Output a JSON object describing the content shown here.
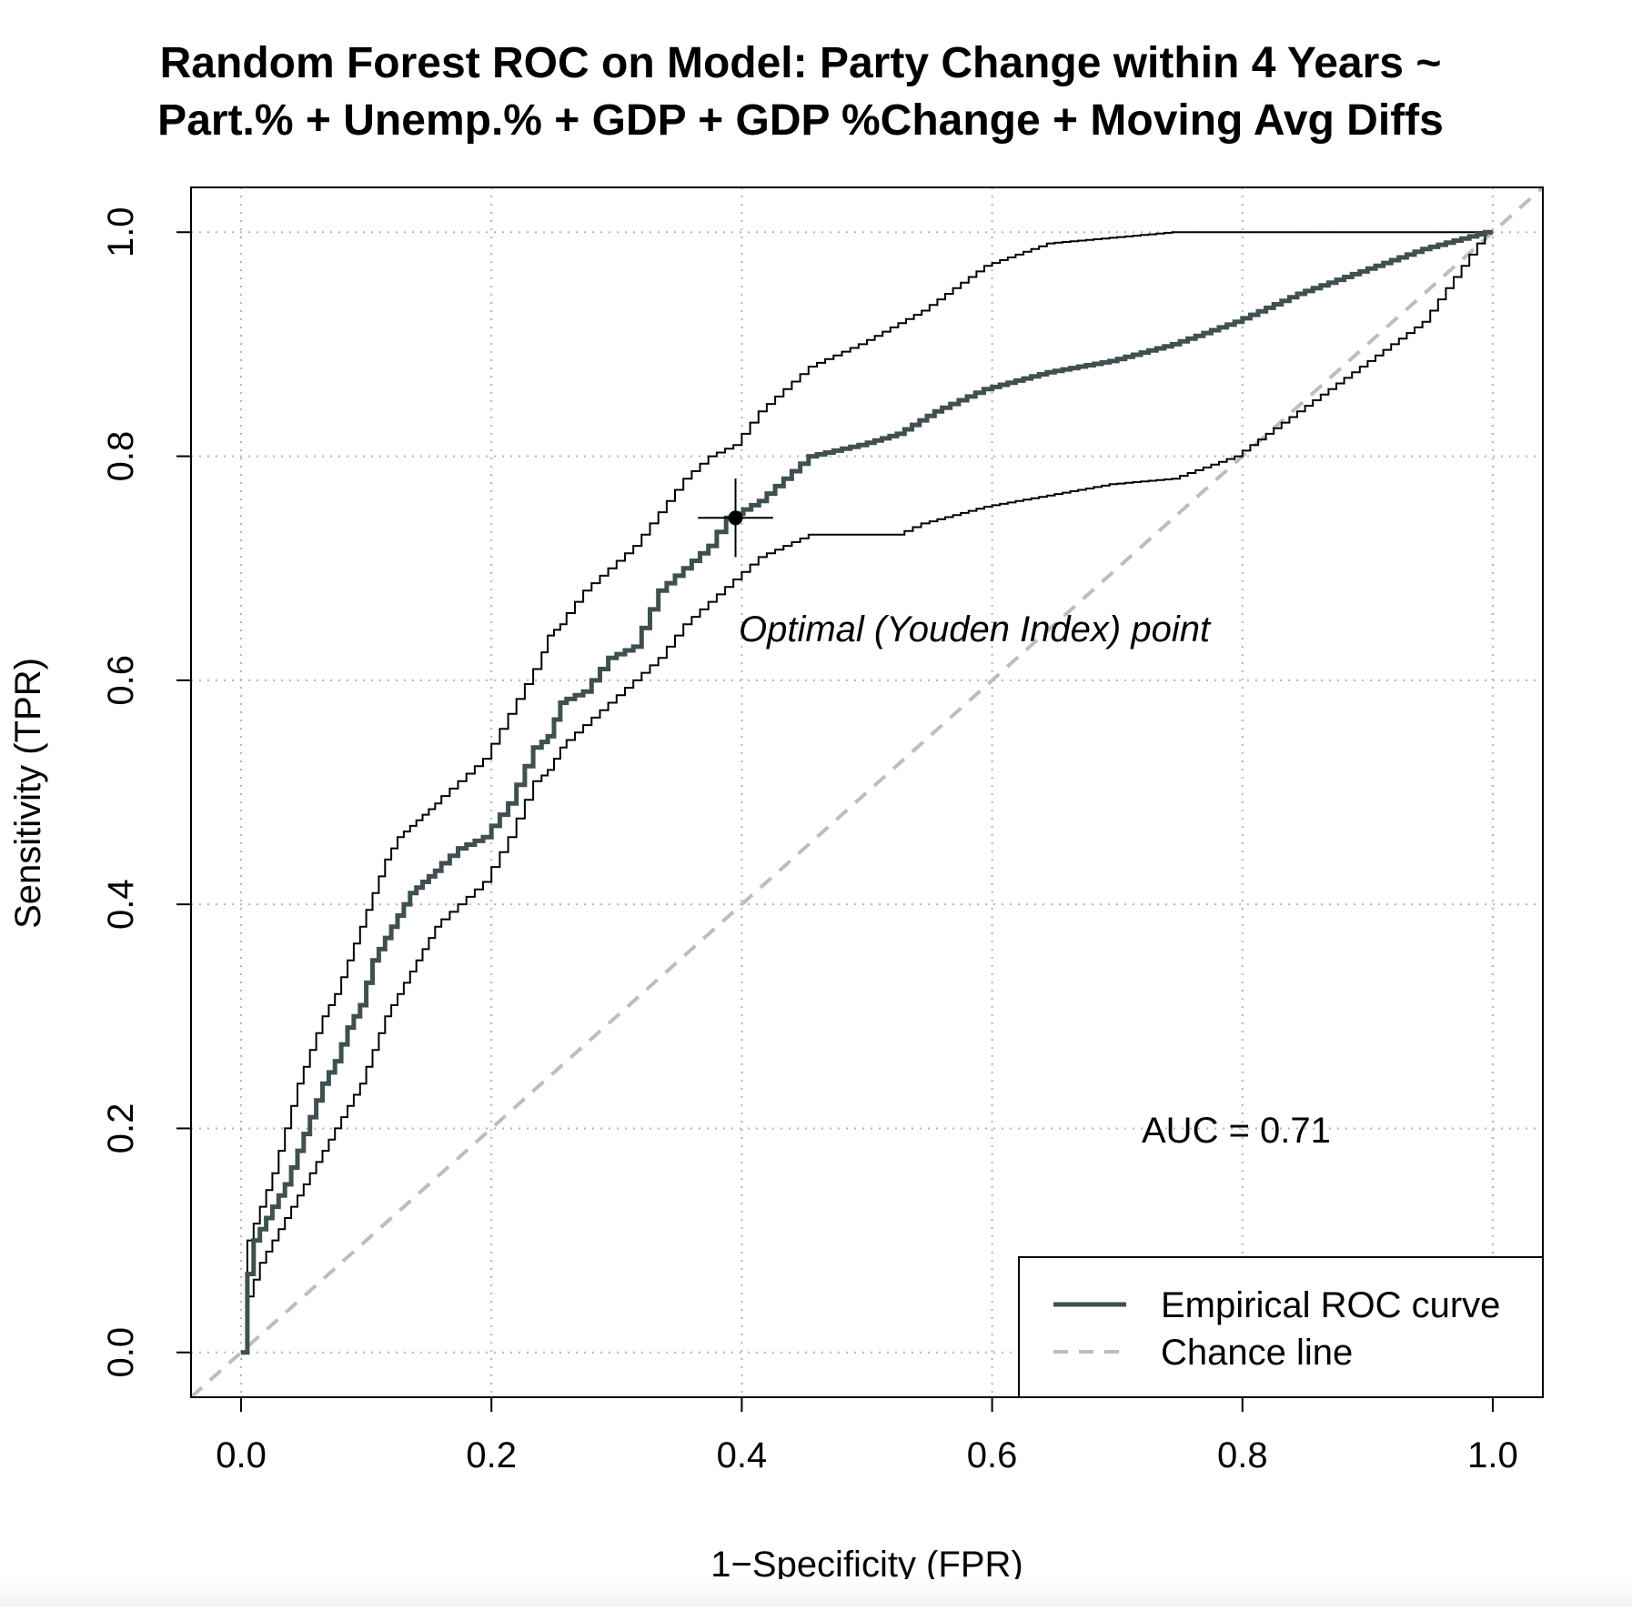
{
  "chart_data": {
    "type": "line",
    "title_line1": "Random Forest ROC on Model: Party Change within 4 Years ~",
    "title_line2": "Part.% + Unemp.% + GDP + GDP %Change + Moving Avg Diffs",
    "xlabel": "1−Specificity (FPR)",
    "ylabel": "Sensitivity (TPR)",
    "xlim": [
      -0.04,
      1.04
    ],
    "ylim": [
      -0.04,
      1.04
    ],
    "x_ticks": [
      "0.0",
      "0.2",
      "0.4",
      "0.6",
      "0.8",
      "1.0"
    ],
    "y_ticks": [
      "0.0",
      "0.2",
      "0.4",
      "0.6",
      "0.8",
      "1.0"
    ],
    "grid": true,
    "legend_position": "bottom-right",
    "series": [
      {
        "name": "Empirical ROC curve",
        "color": "#3e5050",
        "style": "solid",
        "x": [
          0.0,
          0.005,
          0.01,
          0.015,
          0.02,
          0.03,
          0.04,
          0.05,
          0.06,
          0.07,
          0.08,
          0.09,
          0.1,
          0.11,
          0.12,
          0.13,
          0.14,
          0.15,
          0.16,
          0.18,
          0.2,
          0.22,
          0.24,
          0.25,
          0.26,
          0.28,
          0.3,
          0.32,
          0.34,
          0.36,
          0.38,
          0.395,
          0.42,
          0.44,
          0.46,
          0.5,
          0.53,
          0.56,
          0.6,
          0.65,
          0.7,
          0.75,
          0.8,
          0.85,
          0.9,
          0.95,
          1.0
        ],
        "y": [
          0.0,
          0.0,
          0.07,
          0.1,
          0.11,
          0.13,
          0.15,
          0.18,
          0.21,
          0.24,
          0.26,
          0.29,
          0.31,
          0.35,
          0.37,
          0.39,
          0.41,
          0.42,
          0.43,
          0.45,
          0.46,
          0.49,
          0.54,
          0.55,
          0.58,
          0.59,
          0.62,
          0.63,
          0.68,
          0.7,
          0.72,
          0.745,
          0.76,
          0.78,
          0.8,
          0.81,
          0.82,
          0.84,
          0.86,
          0.875,
          0.885,
          0.9,
          0.92,
          0.945,
          0.965,
          0.985,
          1.0
        ]
      },
      {
        "name": "Chance line",
        "color": "#bdbdbd",
        "style": "dashed",
        "x": [
          -0.04,
          1.04
        ],
        "y": [
          -0.04,
          1.04
        ]
      },
      {
        "name": "Upper confidence bound",
        "color": "#000000",
        "style": "thin",
        "x": [
          0.0,
          0.005,
          0.01,
          0.02,
          0.03,
          0.04,
          0.05,
          0.06,
          0.07,
          0.08,
          0.09,
          0.1,
          0.11,
          0.12,
          0.13,
          0.14,
          0.15,
          0.16,
          0.18,
          0.2,
          0.22,
          0.24,
          0.25,
          0.26,
          0.28,
          0.3,
          0.32,
          0.34,
          0.36,
          0.38,
          0.4,
          0.42,
          0.44,
          0.46,
          0.5,
          0.55,
          0.6,
          0.65,
          0.7,
          0.75,
          0.8,
          1.0
        ],
        "y": [
          0.0,
          0.0,
          0.1,
          0.13,
          0.16,
          0.2,
          0.24,
          0.27,
          0.3,
          0.32,
          0.35,
          0.38,
          0.41,
          0.44,
          0.46,
          0.47,
          0.48,
          0.49,
          0.51,
          0.53,
          0.57,
          0.61,
          0.64,
          0.65,
          0.68,
          0.7,
          0.72,
          0.75,
          0.78,
          0.8,
          0.81,
          0.84,
          0.86,
          0.88,
          0.9,
          0.93,
          0.97,
          0.99,
          0.995,
          1.0,
          1.0,
          1.0
        ]
      },
      {
        "name": "Lower confidence bound",
        "color": "#000000",
        "style": "thin",
        "x": [
          0.0,
          0.005,
          0.01,
          0.02,
          0.03,
          0.04,
          0.05,
          0.06,
          0.07,
          0.08,
          0.09,
          0.1,
          0.11,
          0.12,
          0.13,
          0.14,
          0.15,
          0.16,
          0.18,
          0.2,
          0.22,
          0.24,
          0.25,
          0.26,
          0.28,
          0.3,
          0.32,
          0.34,
          0.36,
          0.38,
          0.4,
          0.42,
          0.44,
          0.46,
          0.5,
          0.53,
          0.55,
          0.6,
          0.65,
          0.7,
          0.75,
          0.8,
          0.85,
          0.9,
          0.95,
          1.0
        ],
        "y": [
          0.0,
          0.0,
          0.05,
          0.08,
          0.1,
          0.12,
          0.14,
          0.16,
          0.18,
          0.2,
          0.22,
          0.24,
          0.27,
          0.3,
          0.32,
          0.34,
          0.36,
          0.38,
          0.4,
          0.42,
          0.46,
          0.51,
          0.52,
          0.54,
          0.56,
          0.58,
          0.6,
          0.62,
          0.65,
          0.67,
          0.69,
          0.71,
          0.72,
          0.73,
          0.73,
          0.73,
          0.74,
          0.755,
          0.765,
          0.775,
          0.78,
          0.8,
          0.84,
          0.88,
          0.92,
          1.0
        ]
      }
    ],
    "optimal_point": {
      "label": "Optimal (Youden Index) point",
      "x": 0.395,
      "y": 0.745,
      "x_range": [
        0.365,
        0.425
      ],
      "y_range": [
        0.71,
        0.78
      ]
    },
    "auc_label": "AUC = 0.71"
  }
}
